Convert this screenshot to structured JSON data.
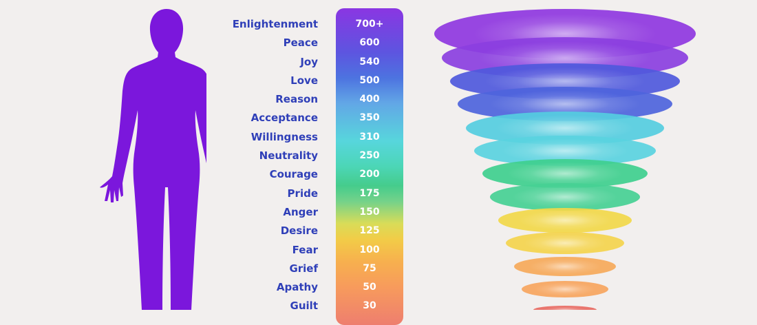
{
  "levels": [
    {
      "label": "Enlightenment",
      "value": "700+"
    },
    {
      "label": "Peace",
      "value": "600"
    },
    {
      "label": "Joy",
      "value": "540"
    },
    {
      "label": "Love",
      "value": "500"
    },
    {
      "label": "Reason",
      "value": "400"
    },
    {
      "label": "Acceptance",
      "value": "350"
    },
    {
      "label": "Willingness",
      "value": "310"
    },
    {
      "label": "Neutrality",
      "value": "250"
    },
    {
      "label": "Courage",
      "value": "200"
    },
    {
      "label": "Pride",
      "value": "175"
    },
    {
      "label": "Anger",
      "value": "150"
    },
    {
      "label": "Desire",
      "value": "125"
    },
    {
      "label": "Fear",
      "value": "100"
    },
    {
      "label": "Grief",
      "value": "75"
    },
    {
      "label": "Apathy",
      "value": "50"
    },
    {
      "label": "Guilt",
      "value": "30"
    }
  ],
  "colors": {
    "background": "#f2efee",
    "figure": "#7b17dc",
    "label_text": "#2f3fb8",
    "funnel": [
      "#8f37e0",
      "#8b3fe0",
      "#4f59dc",
      "#4e64dc",
      "#55cde0",
      "#5ad3df",
      "#3fcf8e",
      "#46d094",
      "#f2d84a",
      "#f4d44d",
      "#f6a95a",
      "#f7a55e",
      "#e86a62"
    ]
  }
}
